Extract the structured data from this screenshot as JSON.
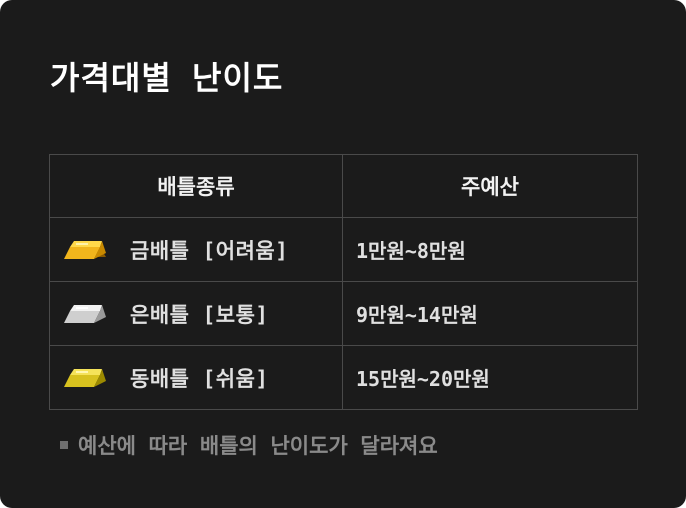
{
  "title": "가격대별 난이도",
  "table": {
    "headers": [
      "배틀종류",
      "주예산"
    ],
    "rows": [
      {
        "icon": "gold-bar-icon",
        "color": "#f1b51c",
        "label": "금배틀 [어려움]",
        "budget": "1만원~8만원"
      },
      {
        "icon": "silver-bar-icon",
        "color": "#cfcfcf",
        "label": "은배틀 [보통]",
        "budget": "9만원~14만원"
      },
      {
        "icon": "bronze-bar-icon",
        "color": "#d8c21f",
        "label": "동배틀 [쉬움]",
        "budget": "15만원~20만원"
      }
    ]
  },
  "note": "예산에 따라 배틀의 난이도가 달라져요"
}
